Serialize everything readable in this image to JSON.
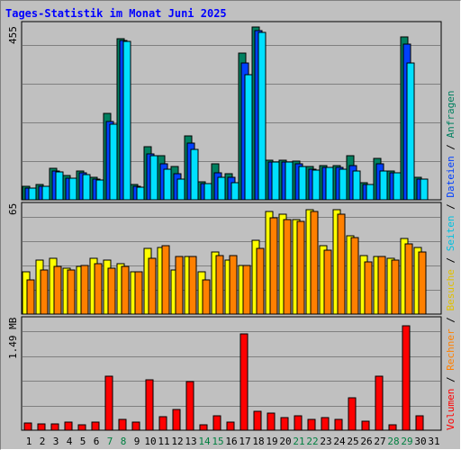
{
  "title": "Tages-Statistik im Monat Juni 2025",
  "colors": {
    "anfragen": "#008060",
    "dateien": "#0040ff",
    "seiten": "#00e0ff",
    "besuche": "#ffff00",
    "rechner": "#ff8000",
    "volumen": "#ff0000",
    "weekend_day": "#008040"
  },
  "side_labels": {
    "volumen": "Volumen",
    "rechner": "Rechner",
    "besuche": "Besuche",
    "seiten": "Seiten",
    "dateien": "Dateien",
    "anfragen": "Anfragen",
    "sep": " / "
  },
  "chart_data": [
    {
      "type": "bar",
      "ymax_label": "455",
      "ylim": [
        0,
        455
      ],
      "x": [
        "1",
        "2",
        "3",
        "4",
        "5",
        "6",
        "7",
        "8",
        "9",
        "10",
        "11",
        "12",
        "13",
        "14",
        "15",
        "16",
        "17",
        "18",
        "19",
        "20",
        "21",
        "22",
        "23",
        "24",
        "25",
        "26",
        "27",
        "28",
        "29",
        "30",
        "31"
      ],
      "series": [
        {
          "name": "Anfragen",
          "key": "anfragen",
          "values": [
            35,
            40,
            82,
            65,
            75,
            60,
            228,
            425,
            40,
            140,
            115,
            87,
            168,
            48,
            95,
            68,
            387,
            455,
            105,
            105,
            102,
            87,
            90,
            90,
            115,
            45,
            110,
            75,
            430,
            60,
            0
          ]
        },
        {
          "name": "Dateien",
          "key": "dateien",
          "values": [
            30,
            35,
            75,
            58,
            70,
            55,
            205,
            420,
            35,
            120,
            95,
            68,
            150,
            42,
            70,
            60,
            360,
            445,
            100,
            100,
            95,
            80,
            85,
            85,
            90,
            40,
            95,
            70,
            410,
            55,
            0
          ]
        },
        {
          "name": "Seiten",
          "key": "seiten",
          "values": [
            30,
            35,
            74,
            57,
            67,
            52,
            198,
            418,
            33,
            115,
            80,
            55,
            132,
            42,
            60,
            45,
            330,
            440,
            100,
            100,
            88,
            78,
            85,
            80,
            75,
            40,
            75,
            70,
            360,
            55,
            0
          ]
        }
      ]
    },
    {
      "type": "bar",
      "ymax_label": "65",
      "ylim": [
        0,
        65
      ],
      "x": [
        "1",
        "2",
        "3",
        "4",
        "5",
        "6",
        "7",
        "8",
        "9",
        "10",
        "11",
        "12",
        "13",
        "14",
        "15",
        "16",
        "17",
        "18",
        "19",
        "20",
        "21",
        "22",
        "23",
        "24",
        "25",
        "26",
        "27",
        "28",
        "29",
        "30",
        "31"
      ],
      "series": [
        {
          "name": "Besuche",
          "key": "besuche",
          "values": [
            26,
            33,
            34,
            28,
            29,
            34,
            33,
            31,
            26,
            40,
            41,
            27,
            35,
            26,
            38,
            33,
            30,
            45,
            63,
            61,
            58,
            64,
            42,
            64,
            48,
            36,
            35,
            34,
            46,
            41,
            0
          ]
        },
        {
          "name": "Rechner",
          "key": "rechner",
          "values": [
            21,
            27,
            29,
            27,
            30,
            31,
            28,
            29,
            26,
            34,
            42,
            35,
            35,
            21,
            36,
            36,
            30,
            40,
            59,
            58,
            57,
            63,
            39,
            61,
            47,
            32,
            35,
            33,
            43,
            38,
            0
          ]
        }
      ]
    },
    {
      "type": "bar",
      "ymax_label": "1.49 MB",
      "ylim": [
        0,
        1.49
      ],
      "x": [
        "1",
        "2",
        "3",
        "4",
        "5",
        "6",
        "7",
        "8",
        "9",
        "10",
        "11",
        "12",
        "13",
        "14",
        "15",
        "16",
        "17",
        "18",
        "19",
        "20",
        "21",
        "22",
        "23",
        "24",
        "25",
        "26",
        "27",
        "28",
        "29",
        "30",
        "31"
      ],
      "series": [
        {
          "name": "Volumen",
          "key": "volumen",
          "values": [
            0.1,
            0.09,
            0.09,
            0.11,
            0.07,
            0.11,
            0.74,
            0.15,
            0.11,
            0.7,
            0.19,
            0.28,
            0.67,
            0.08,
            0.2,
            0.11,
            1.33,
            0.26,
            0.23,
            0.18,
            0.2,
            0.15,
            0.17,
            0.15,
            0.45,
            0.13,
            0.75,
            0.08,
            1.44,
            0.2,
            0
          ]
        }
      ]
    }
  ],
  "weekend_days": [
    "7",
    "8",
    "14",
    "15",
    "21",
    "22",
    "28",
    "29"
  ]
}
